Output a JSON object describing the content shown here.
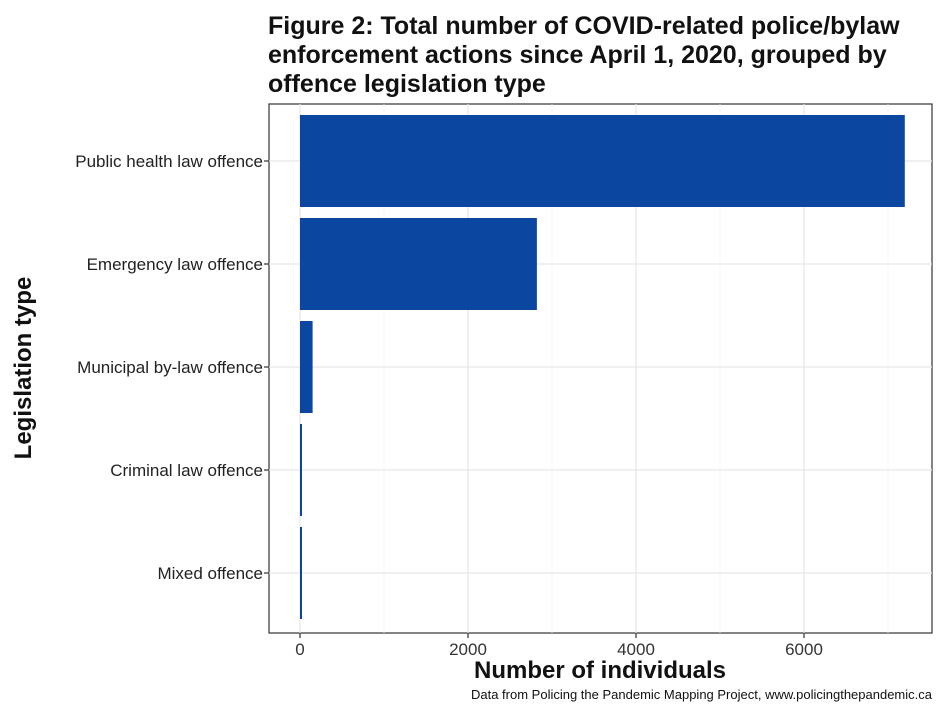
{
  "chart_data": {
    "type": "bar",
    "orientation": "horizontal",
    "title": "Figure 2: Total number of COVID-related police/bylaw enforcement actions since April 1, 2020, grouped by offence legislation type",
    "xlabel": "Number of individuals",
    "ylabel": "Legislation type",
    "source": "Data from Policing the Pandemic Mapping Project, www.policingthepandemic.ca",
    "categories": [
      "Public health law offence",
      "Emergency law offence",
      "Municipal by-law offence",
      "Criminal law offence",
      "Mixed offence"
    ],
    "values": [
      7200,
      2820,
      150,
      20,
      20
    ],
    "xlim": [
      0,
      7200
    ],
    "xticks": [
      0,
      2000,
      4000,
      6000
    ],
    "grid": true,
    "legend": "none",
    "bar_color": "#0b47a1"
  }
}
